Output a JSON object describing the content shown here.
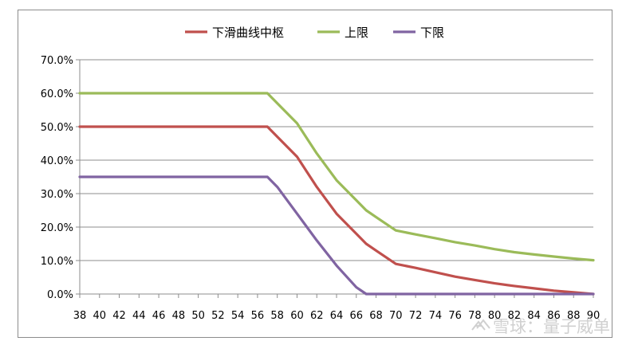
{
  "chart_data": {
    "type": "line",
    "title": "",
    "xlabel": "",
    "ylabel": "",
    "x": [
      38,
      40,
      42,
      44,
      46,
      48,
      50,
      52,
      54,
      56,
      57,
      58,
      60,
      62,
      64,
      66,
      67,
      68,
      70,
      72,
      74,
      76,
      78,
      80,
      82,
      84,
      86,
      88,
      90
    ],
    "x_ticks": [
      "38",
      "40",
      "42",
      "44",
      "46",
      "48",
      "50",
      "52",
      "54",
      "56",
      "58",
      "60",
      "62",
      "64",
      "66",
      "68",
      "70",
      "72",
      "74",
      "76",
      "78",
      "80",
      "82",
      "84",
      "86",
      "88",
      "90"
    ],
    "ylim": [
      0,
      0.7
    ],
    "y_ticks": [
      "0.0%",
      "10.0%",
      "20.0%",
      "30.0%",
      "40.0%",
      "50.0%",
      "60.0%",
      "70.0%"
    ],
    "grid": "horizontal",
    "legend_position": "top",
    "series": [
      {
        "name": "下滑曲线中枢",
        "color": "#c0504d",
        "values": [
          0.5,
          0.5,
          0.5,
          0.5,
          0.5,
          0.5,
          0.5,
          0.5,
          0.5,
          0.5,
          0.5,
          0.47,
          0.41,
          0.32,
          0.24,
          0.18,
          0.15,
          0.13,
          0.09,
          0.078,
          0.065,
          0.052,
          0.042,
          0.032,
          0.024,
          0.017,
          0.01,
          0.005,
          0.0
        ]
      },
      {
        "name": "上限",
        "color": "#9bbb59",
        "values": [
          0.6,
          0.6,
          0.6,
          0.6,
          0.6,
          0.6,
          0.6,
          0.6,
          0.6,
          0.6,
          0.6,
          0.57,
          0.51,
          0.42,
          0.34,
          0.28,
          0.25,
          0.23,
          0.19,
          0.178,
          0.167,
          0.155,
          0.145,
          0.134,
          0.125,
          0.118,
          0.112,
          0.106,
          0.101
        ]
      },
      {
        "name": "下限",
        "color": "#8064a2",
        "values": [
          0.35,
          0.35,
          0.35,
          0.35,
          0.35,
          0.35,
          0.35,
          0.35,
          0.35,
          0.35,
          0.35,
          0.32,
          0.24,
          0.16,
          0.085,
          0.02,
          0.0,
          0.0,
          0.0,
          0.0,
          0.0,
          0.0,
          0.0,
          0.0,
          0.0,
          0.0,
          0.0,
          0.0,
          0.0
        ]
      }
    ]
  },
  "watermark": {
    "logo_icon": "snowball-logo-icon",
    "text": "雪球：量子威单"
  }
}
